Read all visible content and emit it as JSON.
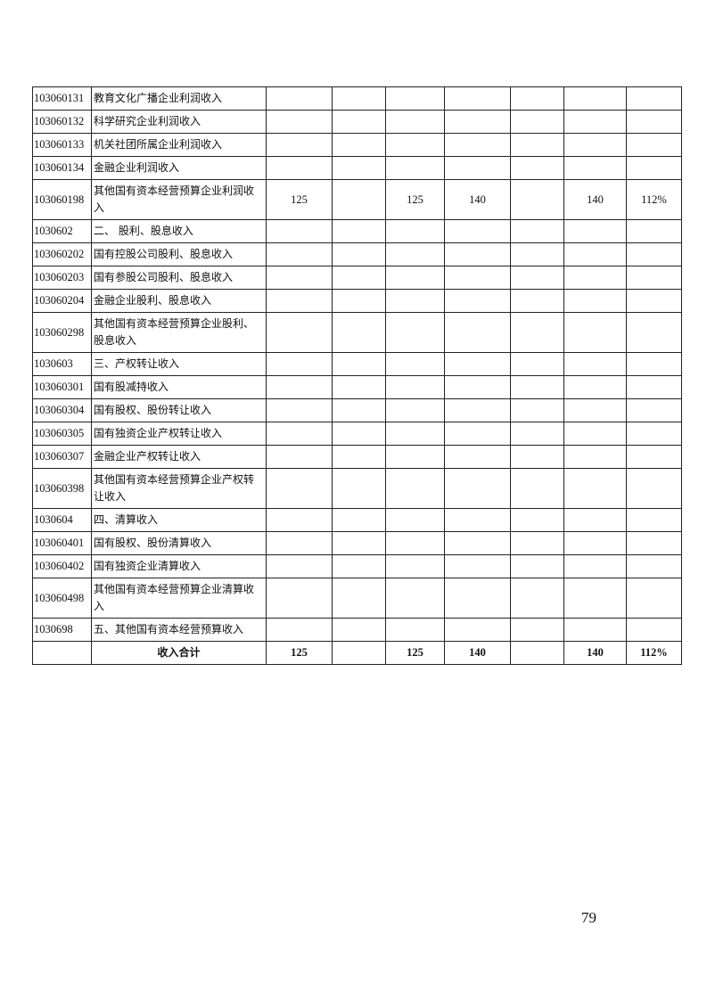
{
  "rows": [
    {
      "code": "103060131",
      "name": "教育文化广播企业利润收入",
      "values": [
        "",
        "",
        "",
        "",
        "",
        "",
        ""
      ],
      "double": false
    },
    {
      "code": "103060132",
      "name": "科学研究企业利润收入",
      "values": [
        "",
        "",
        "",
        "",
        "",
        "",
        ""
      ],
      "double": false
    },
    {
      "code": "103060133",
      "name": "机关社团所属企业利润收入",
      "values": [
        "",
        "",
        "",
        "",
        "",
        "",
        ""
      ],
      "double": false
    },
    {
      "code": "103060134",
      "name": "金融企业利润收入",
      "values": [
        "",
        "",
        "",
        "",
        "",
        "",
        ""
      ],
      "double": false
    },
    {
      "code": "103060198",
      "name": "其他国有资本经营预算企业利润收入",
      "values": [
        "125",
        "",
        "125",
        "140",
        "",
        "140",
        "112%"
      ],
      "double": true
    },
    {
      "code": "1030602",
      "name": "二、 股利、股息收入",
      "values": [
        "",
        "",
        "",
        "",
        "",
        "",
        ""
      ],
      "double": false
    },
    {
      "code": "103060202",
      "name": "国有控股公司股利、股息收入",
      "values": [
        "",
        "",
        "",
        "",
        "",
        "",
        ""
      ],
      "double": false
    },
    {
      "code": "103060203",
      "name": "国有参股公司股利、股息收入",
      "values": [
        "",
        "",
        "",
        "",
        "",
        "",
        ""
      ],
      "double": false
    },
    {
      "code": "103060204",
      "name": "金融企业股利、股息收入",
      "values": [
        "",
        "",
        "",
        "",
        "",
        "",
        ""
      ],
      "double": false
    },
    {
      "code": "103060298",
      "name": "其他国有资本经营预算企业股利、股息收入",
      "values": [
        "",
        "",
        "",
        "",
        "",
        "",
        ""
      ],
      "double": true
    },
    {
      "code": "1030603",
      "name": "三、产权转让收入",
      "values": [
        "",
        "",
        "",
        "",
        "",
        "",
        ""
      ],
      "double": false
    },
    {
      "code": "103060301",
      "name": "国有股减持收入",
      "values": [
        "",
        "",
        "",
        "",
        "",
        "",
        ""
      ],
      "double": false
    },
    {
      "code": "103060304",
      "name": "国有股权、股份转让收入",
      "values": [
        "",
        "",
        "",
        "",
        "",
        "",
        ""
      ],
      "double": false
    },
    {
      "code": "103060305",
      "name": "国有独资企业产权转让收入",
      "values": [
        "",
        "",
        "",
        "",
        "",
        "",
        ""
      ],
      "double": false
    },
    {
      "code": "103060307",
      "name": "金融企业产权转让收入",
      "values": [
        "",
        "",
        "",
        "",
        "",
        "",
        ""
      ],
      "double": false
    },
    {
      "code": "103060398",
      "name": "其他国有资本经营预算企业产权转让收入",
      "values": [
        "",
        "",
        "",
        "",
        "",
        "",
        ""
      ],
      "double": true
    },
    {
      "code": "1030604",
      "name": "四、清算收入",
      "values": [
        "",
        "",
        "",
        "",
        "",
        "",
        ""
      ],
      "double": false
    },
    {
      "code": "103060401",
      "name": "国有股权、股份清算收入",
      "values": [
        "",
        "",
        "",
        "",
        "",
        "",
        ""
      ],
      "double": false
    },
    {
      "code": "103060402",
      "name": "国有独资企业清算收入",
      "values": [
        "",
        "",
        "",
        "",
        "",
        "",
        ""
      ],
      "double": false
    },
    {
      "code": "103060498",
      "name": "其他国有资本经营预算企业清算收入",
      "values": [
        "",
        "",
        "",
        "",
        "",
        "",
        ""
      ],
      "double": true
    },
    {
      "code": "1030698",
      "name": "五、其他国有资本经营预算收入",
      "values": [
        "",
        "",
        "",
        "",
        "",
        "",
        ""
      ],
      "double": false
    }
  ],
  "total": {
    "code": "",
    "name": "收入合计",
    "values": [
      "125",
      "",
      "125",
      "140",
      "",
      "140",
      "112%"
    ]
  },
  "page_number": "79"
}
